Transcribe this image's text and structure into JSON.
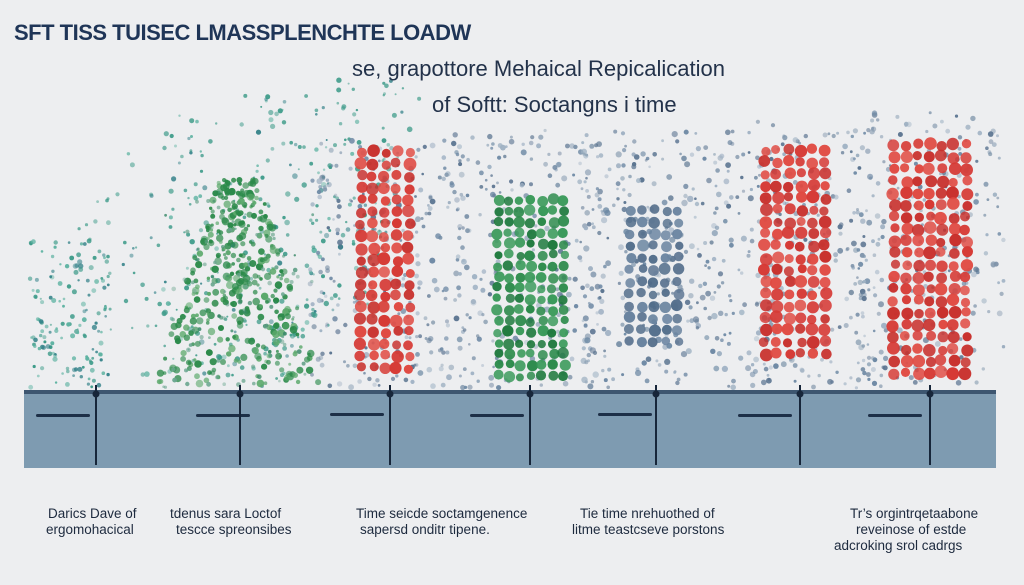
{
  "title": "SFT TISS TUISEC LMASSPLENCHTE LOADW",
  "subtitle_line1": "se, grapottore Mehaical Repicalication",
  "subtitle_line2": "of  Softt: Soctangns i time",
  "captions": [
    {
      "line1": "Darics  Dave of",
      "line2": "ergomohacical"
    },
    {
      "line1": "tdenus sara Loctof",
      "line2": "tescce spreonsibes"
    },
    {
      "line1": "Time seicde soctamgenence",
      "line2": "sapersd onditr tipene."
    },
    {
      "line1": "Tie time nrehuothed of",
      "line2": "litme teastcseve porstons"
    },
    {
      "line1": "Tr’s orgintrqetaabone",
      "line2": "reveinose of estde",
      "line3": "adcroking srol cadrgs"
    }
  ],
  "colors": {
    "background": "#edeef0",
    "title": "#1f3557",
    "tissue_band": "#7e9bb1",
    "tissue_band_top": "#3d5670",
    "stem": "#17263a",
    "red": "#d63a35",
    "green": "#2b8a4a",
    "slate": "#5c7591",
    "grey_blue": "#7f95ab"
  },
  "columns": [
    {
      "name": "spray",
      "palette": "teal"
    },
    {
      "name": "tree",
      "palette": "green"
    },
    {
      "name": "red-cluster-1",
      "palette": "red"
    },
    {
      "name": "green-cluster",
      "palette": "green-dense"
    },
    {
      "name": "blue-cluster",
      "palette": "slate"
    },
    {
      "name": "red-cluster-2",
      "palette": "red"
    },
    {
      "name": "red-cluster-3",
      "palette": "red"
    }
  ]
}
